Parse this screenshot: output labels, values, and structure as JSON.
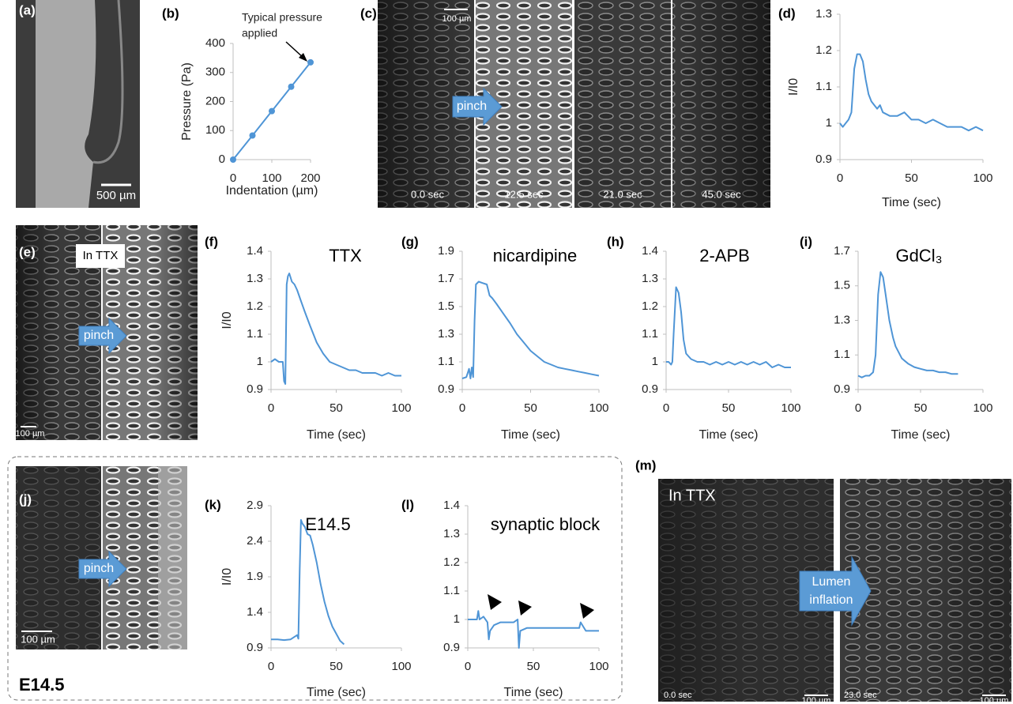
{
  "chart_data": [
    {
      "type": "line",
      "panel": "(b)",
      "annotation": [
        "Typical pressure",
        "applied"
      ],
      "xlabel": "Indentation (µm)",
      "ylabel": "Pressure (Pa)",
      "markers": true,
      "x": [
        0,
        50,
        100,
        150,
        200
      ],
      "series": [
        {
          "color": "#4f95d6",
          "values": [
            0,
            83,
            167,
            251,
            335
          ]
        }
      ],
      "xlim": [
        0,
        200
      ],
      "ylim": [
        0,
        400
      ],
      "xticks": [
        0,
        100,
        200
      ],
      "yticks": [
        0,
        100,
        200,
        300,
        400
      ]
    },
    {
      "type": "line",
      "panel": "(d)",
      "xlabel": "Time (sec)",
      "ylabel": "I/I0",
      "x": [
        0,
        2,
        4,
        6,
        8,
        10,
        12,
        14,
        16,
        18,
        20,
        22,
        24,
        26,
        28,
        30,
        35,
        40,
        45,
        50,
        55,
        60,
        65,
        70,
        75,
        80,
        85,
        90,
        95,
        100
      ],
      "series": [
        {
          "color": "#4f95d6",
          "values": [
            1.0,
            0.99,
            1.0,
            1.01,
            1.03,
            1.15,
            1.19,
            1.19,
            1.17,
            1.12,
            1.08,
            1.06,
            1.05,
            1.04,
            1.05,
            1.03,
            1.02,
            1.02,
            1.03,
            1.01,
            1.01,
            1.0,
            1.01,
            1.0,
            0.99,
            0.99,
            0.99,
            0.98,
            0.99,
            0.98
          ]
        }
      ],
      "xlim": [
        0,
        100
      ],
      "ylim": [
        0.9,
        1.3
      ],
      "xticks": [
        0,
        50,
        100
      ],
      "yticks": [
        0.9,
        1,
        1.1,
        1.2,
        1.3
      ]
    },
    {
      "type": "line",
      "panel": "(f)",
      "title": "TTX",
      "xlabel": "Time (sec)",
      "ylabel": "I/I0",
      "x": [
        0,
        3,
        6,
        9,
        10,
        11,
        12,
        13,
        14,
        16,
        18,
        20,
        23,
        26,
        30,
        35,
        40,
        45,
        50,
        55,
        60,
        65,
        70,
        75,
        80,
        85,
        90,
        95,
        100
      ],
      "series": [
        {
          "color": "#4f95d6",
          "values": [
            1.0,
            1.01,
            1.0,
            1.0,
            0.93,
            0.92,
            1.28,
            1.31,
            1.32,
            1.29,
            1.28,
            1.26,
            1.22,
            1.18,
            1.13,
            1.07,
            1.03,
            1.0,
            0.99,
            0.98,
            0.97,
            0.97,
            0.96,
            0.96,
            0.96,
            0.95,
            0.96,
            0.95,
            0.95
          ]
        }
      ],
      "xlim": [
        0,
        100
      ],
      "ylim": [
        0.9,
        1.4
      ],
      "xticks": [
        0,
        50,
        100
      ],
      "yticks": [
        0.9,
        1,
        1.1,
        1.2,
        1.3,
        1.4
      ]
    },
    {
      "type": "line",
      "panel": "(g)",
      "title": "nicardipine",
      "xlabel": "Time (sec)",
      "x": [
        0,
        3,
        5,
        6,
        7,
        8,
        9,
        10,
        12,
        15,
        18,
        20,
        22,
        25,
        30,
        35,
        40,
        45,
        50,
        55,
        60,
        65,
        70,
        75,
        80,
        85,
        90,
        95,
        100
      ],
      "series": [
        {
          "color": "#4f95d6",
          "values": [
            0.98,
            0.99,
            1.05,
            0.98,
            1.06,
            0.99,
            1.4,
            1.66,
            1.68,
            1.67,
            1.66,
            1.58,
            1.56,
            1.52,
            1.45,
            1.38,
            1.3,
            1.24,
            1.18,
            1.14,
            1.1,
            1.08,
            1.06,
            1.05,
            1.04,
            1.03,
            1.02,
            1.01,
            1.0
          ]
        }
      ],
      "xlim": [
        0,
        100
      ],
      "ylim": [
        0.9,
        1.9
      ],
      "xticks": [
        0,
        50,
        100
      ],
      "yticks": [
        0.9,
        1.1,
        1.3,
        1.5,
        1.7,
        1.9
      ]
    },
    {
      "type": "line",
      "panel": "(h)",
      "title": "2-APB",
      "xlabel": "Time (sec)",
      "x": [
        0,
        2,
        4,
        5,
        6,
        8,
        10,
        12,
        14,
        16,
        18,
        20,
        25,
        30,
        35,
        40,
        45,
        50,
        55,
        60,
        65,
        70,
        75,
        80,
        85,
        90,
        95,
        100
      ],
      "series": [
        {
          "color": "#4f95d6",
          "values": [
            1.0,
            1.0,
            0.99,
            1.0,
            1.1,
            1.27,
            1.25,
            1.18,
            1.08,
            1.03,
            1.02,
            1.01,
            1.0,
            1.0,
            0.99,
            1.0,
            0.99,
            1.0,
            0.99,
            1.0,
            0.99,
            1.0,
            0.99,
            1.0,
            0.98,
            0.99,
            0.98,
            0.98
          ]
        }
      ],
      "xlim": [
        0,
        100
      ],
      "ylim": [
        0.9,
        1.4
      ],
      "xticks": [
        0,
        50,
        100
      ],
      "yticks": [
        0.9,
        1,
        1.1,
        1.2,
        1.3,
        1.4
      ]
    },
    {
      "type": "line",
      "panel": "(i)",
      "title": "GdCl₃",
      "xlabel": "Time (sec)",
      "x": [
        0,
        3,
        6,
        9,
        12,
        14,
        16,
        18,
        20,
        22,
        25,
        28,
        30,
        35,
        40,
        45,
        50,
        55,
        60,
        65,
        70,
        75,
        80
      ],
      "series": [
        {
          "color": "#4f95d6",
          "values": [
            0.98,
            0.97,
            0.98,
            0.98,
            1.0,
            1.1,
            1.45,
            1.58,
            1.55,
            1.45,
            1.3,
            1.2,
            1.15,
            1.08,
            1.05,
            1.03,
            1.02,
            1.01,
            1.01,
            1.0,
            1.0,
            0.99,
            0.99
          ]
        }
      ],
      "xlim": [
        0,
        100
      ],
      "ylim": [
        0.9,
        1.7
      ],
      "xticks": [
        0,
        50,
        100
      ],
      "yticks": [
        0.9,
        1.1,
        1.3,
        1.5,
        1.7
      ]
    },
    {
      "type": "line",
      "panel": "(k)",
      "title": "E14.5",
      "xlabel": "Time (sec)",
      "ylabel": "I/I0",
      "x": [
        0,
        5,
        10,
        15,
        20,
        21,
        22,
        23,
        24,
        26,
        28,
        30,
        32,
        35,
        38,
        41,
        44,
        47,
        50,
        53,
        56
      ],
      "series": [
        {
          "color": "#4f95d6",
          "values": [
            1.02,
            1.02,
            1.01,
            1.02,
            1.08,
            1.03,
            2.0,
            2.7,
            2.65,
            2.6,
            2.5,
            2.48,
            2.35,
            2.1,
            1.8,
            1.55,
            1.35,
            1.2,
            1.1,
            1.0,
            0.95
          ]
        }
      ],
      "xlim": [
        0,
        100
      ],
      "ylim": [
        0.9,
        2.9
      ],
      "xticks": [
        0,
        50,
        100
      ],
      "yticks": [
        0.9,
        1.4,
        1.9,
        2.4,
        2.9
      ]
    },
    {
      "type": "line",
      "panel": "(l)",
      "title": "synaptic block",
      "xlabel": "Time (sec)",
      "x": [
        0,
        4,
        7,
        8,
        9,
        12,
        15,
        16,
        17,
        20,
        25,
        30,
        35,
        38,
        39,
        40,
        45,
        50,
        60,
        70,
        80,
        85,
        86,
        90,
        100
      ],
      "series": [
        {
          "color": "#4f95d6",
          "values": [
            1.0,
            1.0,
            1.0,
            1.03,
            1.0,
            1.01,
            0.99,
            0.93,
            0.96,
            0.98,
            0.99,
            0.99,
            0.99,
            1.0,
            0.9,
            0.96,
            0.97,
            0.97,
            0.97,
            0.97,
            0.97,
            0.97,
            0.99,
            0.96,
            0.96
          ]
        }
      ],
      "xlim": [
        0,
        100
      ],
      "ylim": [
        0.9,
        1.4
      ],
      "xticks": [
        0,
        50,
        100
      ],
      "yticks": [
        0.9,
        1,
        1.1,
        1.2,
        1.3,
        1.4
      ]
    }
  ],
  "images": {
    "a": {
      "panel": "(a)",
      "scale": "500 µm"
    },
    "c": {
      "panel": "(c)",
      "scale": "100 µm",
      "arrow": "pinch",
      "times": [
        "0.0 sec",
        "12.5 sec",
        "21.0 sec",
        "45.0 sec"
      ]
    },
    "e": {
      "panel": "(e)",
      "condition": "In TTX",
      "arrow": "pinch",
      "scale": "100 µm"
    },
    "j": {
      "panel": "(j)",
      "arrow": "pinch",
      "scale": "100 µm"
    },
    "m": {
      "panel": "(m)",
      "condition": "In TTX",
      "arrow": [
        "Lumen",
        "inflation"
      ],
      "times": [
        "0.0 sec",
        "23.0 sec"
      ],
      "scales": [
        "100 µm",
        "100 µm"
      ]
    }
  },
  "box_label": "E14.5"
}
